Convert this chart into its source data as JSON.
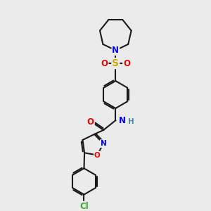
{
  "bg_color": "#ebebeb",
  "bond_color": "#1a1a1a",
  "bond_width": 1.5,
  "atom_colors": {
    "N": "#0000ee",
    "O": "#ee0000",
    "S": "#ccaa00",
    "Cl": "#33aa33",
    "C": "#1a1a1a"
  },
  "font_size": 8.5
}
